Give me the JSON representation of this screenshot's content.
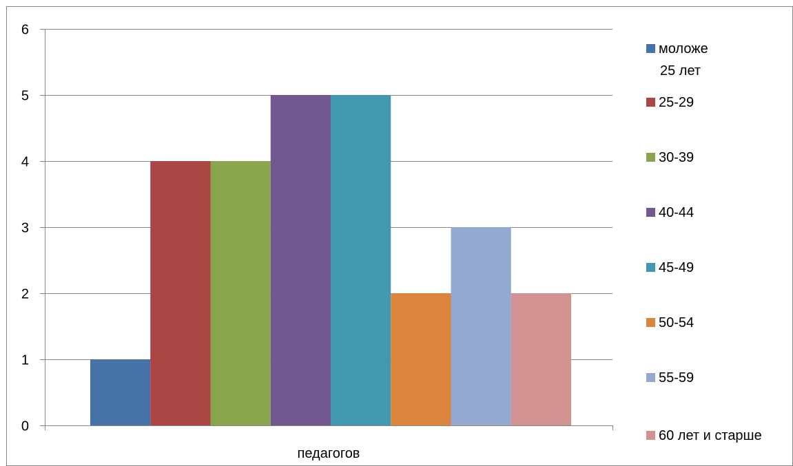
{
  "chart_data": {
    "type": "bar",
    "categories": [
      "педагогов"
    ],
    "series": [
      {
        "name": "моложе 25 лет",
        "values": [
          1
        ],
        "color": "#4572A7"
      },
      {
        "name": "25-29",
        "values": [
          4
        ],
        "color": "#AA4643"
      },
      {
        "name": "30-39",
        "values": [
          4
        ],
        "color": "#89A54E"
      },
      {
        "name": "40-44",
        "values": [
          5
        ],
        "color": "#71588F"
      },
      {
        "name": "45-49",
        "values": [
          5
        ],
        "color": "#4198AF"
      },
      {
        "name": "50-54",
        "values": [
          2
        ],
        "color": "#DB843D"
      },
      {
        "name": "55-59",
        "values": [
          3
        ],
        "color": "#93A9CF"
      },
      {
        "name": "60 лет и старше",
        "values": [
          2
        ],
        "color": "#D09392"
      }
    ],
    "title": "",
    "xlabel": "",
    "ylabel": "",
    "ylim": [
      0,
      6
    ],
    "yticks": [
      "0",
      "1",
      "2",
      "3",
      "4",
      "5",
      "6"
    ],
    "grid": true,
    "legend_position": "right"
  }
}
